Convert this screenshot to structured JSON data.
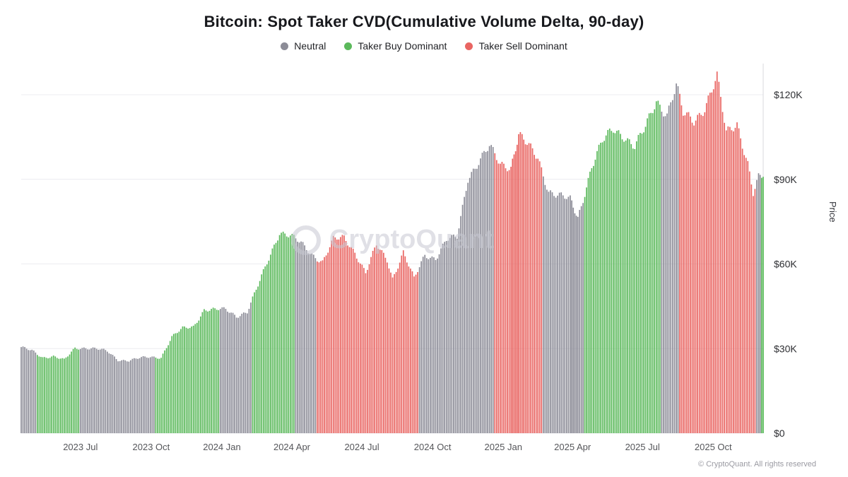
{
  "title": "Bitcoin: Spot Taker CVD(Cumulative Volume Delta, 90-day)",
  "legend": [
    {
      "label": "Neutral",
      "color": "#8c8c97"
    },
    {
      "label": "Taker Buy Dominant",
      "color": "#5bb95b"
    },
    {
      "label": "Taker Sell Dominant",
      "color": "#e96562"
    }
  ],
  "watermark": "CryptoQuant",
  "footer": "© CryptoQuant. All rights reserved",
  "y_axis_label": "Price",
  "chart_data": {
    "type": "bar",
    "title": "Bitcoin: Spot Taker CVD(Cumulative Volume Delta, 90-day)",
    "ylabel": "Price",
    "ylim_kusd": [
      0,
      132
    ],
    "grid": true,
    "legend_position": "top-center",
    "y_ticks": [
      {
        "value": 0,
        "label": "$0"
      },
      {
        "value": 30,
        "label": "$30K"
      },
      {
        "value": 60,
        "label": "$60K"
      },
      {
        "value": 90,
        "label": "$90K"
      },
      {
        "value": 120,
        "label": "$120K"
      }
    ],
    "x_ticks": [
      {
        "date": "2023-07-01",
        "label": "2023 Jul"
      },
      {
        "date": "2023-10-01",
        "label": "2023 Oct"
      },
      {
        "date": "2024-01-01",
        "label": "2024 Jan"
      },
      {
        "date": "2024-04-01",
        "label": "2024 Apr"
      },
      {
        "date": "2024-07-01",
        "label": "2024 Jul"
      },
      {
        "date": "2024-10-01",
        "label": "2024 Oct"
      },
      {
        "date": "2025-01-01",
        "label": "2025 Jan"
      },
      {
        "date": "2025-04-01",
        "label": "2025 Apr"
      },
      {
        "date": "2025-07-01",
        "label": "2025 Jul"
      },
      {
        "date": "2025-10-01",
        "label": "2025 Oct"
      }
    ],
    "regimes": {
      "n": "Neutral",
      "b": "Taker Buy Dominant",
      "s": "Taker Sell Dominant"
    },
    "colors": {
      "n": "#8c8c97",
      "b": "#5bb95b",
      "s": "#e96562"
    },
    "unit": "K USD",
    "points": [
      [
        "2023-04-15",
        30.3,
        "n"
      ],
      [
        "2023-04-29",
        29.3,
        "n"
      ],
      [
        "2023-05-13",
        26.9,
        "b"
      ],
      [
        "2023-05-27",
        27.2,
        "b"
      ],
      [
        "2023-06-10",
        25.9,
        "b"
      ],
      [
        "2023-06-24",
        30.2,
        "b"
      ],
      [
        "2023-07-08",
        30.3,
        "n"
      ],
      [
        "2023-07-22",
        29.9,
        "n"
      ],
      [
        "2023-08-05",
        29.0,
        "n"
      ],
      [
        "2023-08-19",
        26.0,
        "n"
      ],
      [
        "2023-09-02",
        25.8,
        "n"
      ],
      [
        "2023-09-16",
        26.6,
        "n"
      ],
      [
        "2023-09-30",
        27.0,
        "n"
      ],
      [
        "2023-10-14",
        26.9,
        "b"
      ],
      [
        "2023-10-28",
        34.1,
        "b"
      ],
      [
        "2023-11-11",
        37.1,
        "b"
      ],
      [
        "2023-11-25",
        37.8,
        "b"
      ],
      [
        "2023-12-09",
        43.8,
        "b"
      ],
      [
        "2023-12-23",
        43.7,
        "b"
      ],
      [
        "2024-01-06",
        43.9,
        "n"
      ],
      [
        "2024-01-20",
        41.6,
        "n"
      ],
      [
        "2024-02-03",
        43.0,
        "n"
      ],
      [
        "2024-02-17",
        52.2,
        "b"
      ],
      [
        "2024-03-02",
        62.0,
        "b"
      ],
      [
        "2024-03-16",
        71.4,
        "b"
      ],
      [
        "2024-03-30",
        69.9,
        "b"
      ],
      [
        "2024-04-13",
        67.2,
        "n"
      ],
      [
        "2024-04-27",
        63.5,
        "n"
      ],
      [
        "2024-05-11",
        60.8,
        "s"
      ],
      [
        "2024-05-25",
        68.5,
        "s"
      ],
      [
        "2024-06-08",
        69.3,
        "s"
      ],
      [
        "2024-06-22",
        64.3,
        "s"
      ],
      [
        "2024-07-06",
        56.8,
        "s"
      ],
      [
        "2024-07-20",
        66.5,
        "s"
      ],
      [
        "2024-08-03",
        61.5,
        "s"
      ],
      [
        "2024-08-10",
        55.0,
        "s"
      ],
      [
        "2024-08-24",
        64.1,
        "s"
      ],
      [
        "2024-09-07",
        54.6,
        "s"
      ],
      [
        "2024-09-21",
        63.2,
        "n"
      ],
      [
        "2024-10-05",
        62.1,
        "n"
      ],
      [
        "2024-10-19",
        68.4,
        "n"
      ],
      [
        "2024-11-02",
        69.4,
        "n"
      ],
      [
        "2024-11-16",
        90.6,
        "n"
      ],
      [
        "2024-11-30",
        96.4,
        "n"
      ],
      [
        "2024-12-14",
        101.4,
        "n"
      ],
      [
        "2024-12-28",
        95.3,
        "s"
      ],
      [
        "2025-01-11",
        94.6,
        "s"
      ],
      [
        "2025-01-21",
        106.1,
        "s"
      ],
      [
        "2025-02-01",
        102.1,
        "s"
      ],
      [
        "2025-02-15",
        97.5,
        "s"
      ],
      [
        "2025-03-01",
        86.0,
        "n"
      ],
      [
        "2025-03-15",
        84.2,
        "n"
      ],
      [
        "2025-03-29",
        82.6,
        "n"
      ],
      [
        "2025-04-08",
        76.3,
        "n"
      ],
      [
        "2025-04-26",
        94.7,
        "b"
      ],
      [
        "2025-05-10",
        103.2,
        "b"
      ],
      [
        "2025-05-24",
        107.8,
        "b"
      ],
      [
        "2025-06-07",
        105.6,
        "b"
      ],
      [
        "2025-06-21",
        101.5,
        "b"
      ],
      [
        "2025-07-05",
        108.2,
        "b"
      ],
      [
        "2025-07-19",
        118.0,
        "b"
      ],
      [
        "2025-08-02",
        113.2,
        "n"
      ],
      [
        "2025-08-14",
        123.3,
        "n"
      ],
      [
        "2025-08-23",
        113.0,
        "s"
      ],
      [
        "2025-09-06",
        110.8,
        "s"
      ],
      [
        "2025-09-20",
        115.7,
        "s"
      ],
      [
        "2025-10-06",
        126.0,
        "s"
      ],
      [
        "2025-10-18",
        106.4,
        "s"
      ],
      [
        "2025-11-01",
        110.1,
        "s"
      ],
      [
        "2025-11-15",
        95.6,
        "s"
      ],
      [
        "2025-11-22",
        84.8,
        "s"
      ],
      [
        "2025-11-29",
        90.2,
        "n"
      ],
      [
        "2025-12-05",
        90.9,
        "b"
      ]
    ]
  }
}
